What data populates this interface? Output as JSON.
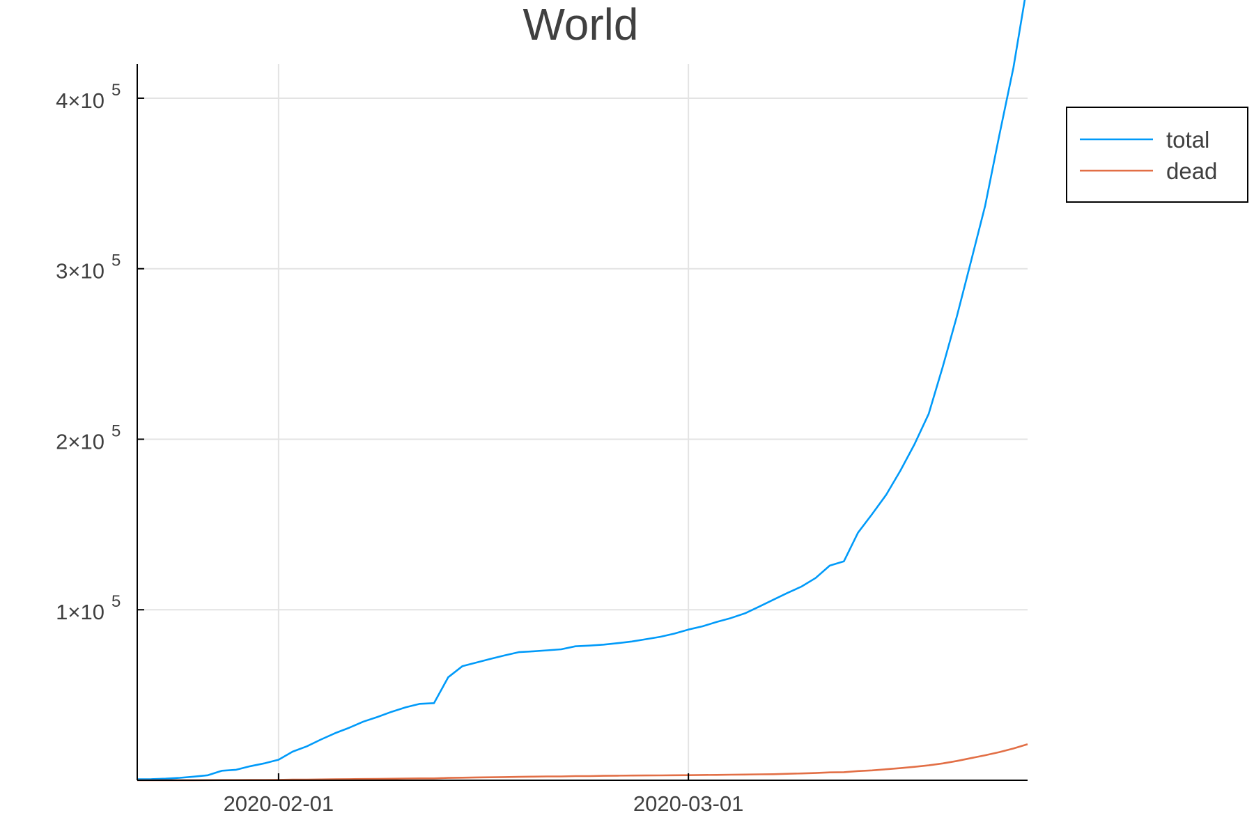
{
  "chart_data": {
    "type": "line",
    "title": "World",
    "xlabel": "",
    "ylabel": "",
    "x_range": [
      "2020-01-22",
      "2020-03-25"
    ],
    "ylim": [
      0,
      420000
    ],
    "grid": true,
    "legend_position": "top-right",
    "x_ticks": [
      {
        "value": "2020-02-01",
        "label": "2020-02-01"
      },
      {
        "value": "2020-03-01",
        "label": "2020-03-01"
      }
    ],
    "y_ticks": [
      {
        "value": 100000,
        "mantissa": "1×10",
        "exponent": "5"
      },
      {
        "value": 200000,
        "mantissa": "2×10",
        "exponent": "5"
      },
      {
        "value": 300000,
        "mantissa": "3×10",
        "exponent": "5"
      },
      {
        "value": 400000,
        "mantissa": "4×10",
        "exponent": "5"
      }
    ],
    "x": [
      "2020-01-22",
      "2020-01-23",
      "2020-01-24",
      "2020-01-25",
      "2020-01-26",
      "2020-01-27",
      "2020-01-28",
      "2020-01-29",
      "2020-01-30",
      "2020-01-31",
      "2020-02-01",
      "2020-02-02",
      "2020-02-03",
      "2020-02-04",
      "2020-02-05",
      "2020-02-06",
      "2020-02-07",
      "2020-02-08",
      "2020-02-09",
      "2020-02-10",
      "2020-02-11",
      "2020-02-12",
      "2020-02-13",
      "2020-02-14",
      "2020-02-15",
      "2020-02-16",
      "2020-02-17",
      "2020-02-18",
      "2020-02-19",
      "2020-02-20",
      "2020-02-21",
      "2020-02-22",
      "2020-02-23",
      "2020-02-24",
      "2020-02-25",
      "2020-02-26",
      "2020-02-27",
      "2020-02-28",
      "2020-02-29",
      "2020-03-01",
      "2020-03-02",
      "2020-03-03",
      "2020-03-04",
      "2020-03-05",
      "2020-03-06",
      "2020-03-07",
      "2020-03-08",
      "2020-03-09",
      "2020-03-10",
      "2020-03-11",
      "2020-03-12",
      "2020-03-13",
      "2020-03-14",
      "2020-03-15",
      "2020-03-16",
      "2020-03-17",
      "2020-03-18",
      "2020-03-19",
      "2020-03-20",
      "2020-03-21",
      "2020-03-22",
      "2020-03-23",
      "2020-03-24",
      "2020-03-25"
    ],
    "series": [
      {
        "name": "total",
        "color": "#009af9",
        "values": [
          555,
          654,
          941,
          1434,
          2118,
          2927,
          5578,
          6166,
          8234,
          9927,
          12038,
          16787,
          19881,
          23892,
          27635,
          30794,
          34391,
          37120,
          40150,
          42762,
          44802,
          45221,
          60368,
          66885,
          69030,
          71224,
          73258,
          75136,
          75639,
          76197,
          76819,
          78572,
          78958,
          79561,
          80406,
          81388,
          82746,
          84112,
          86011,
          88369,
          90306,
          92840,
          95120,
          97886,
          101801,
          105847,
          109821,
          113590,
          118620,
          125875,
          128352,
          145205,
          156101,
          167454,
          181574,
          197102,
          214821,
          242570,
          272208,
          304507,
          336953,
          378235,
          417966,
          467594
        ]
      },
      {
        "name": "dead",
        "color": "#e26f46",
        "values": [
          17,
          18,
          26,
          42,
          56,
          82,
          131,
          133,
          171,
          213,
          259,
          362,
          426,
          492,
          564,
          634,
          719,
          806,
          906,
          1013,
          1113,
          1118,
          1371,
          1523,
          1666,
          1770,
          1868,
          2007,
          2122,
          2247,
          2251,
          2458,
          2469,
          2629,
          2708,
          2770,
          2814,
          2872,
          2941,
          2996,
          3085,
          3160,
          3254,
          3348,
          3460,
          3558,
          3802,
          3988,
          4262,
          4615,
          4720,
          5404,
          5819,
          6440,
          7126,
          7905,
          8733,
          9867,
          11299,
          12973,
          14651,
          16505,
          18625,
          21181
        ]
      }
    ]
  }
}
